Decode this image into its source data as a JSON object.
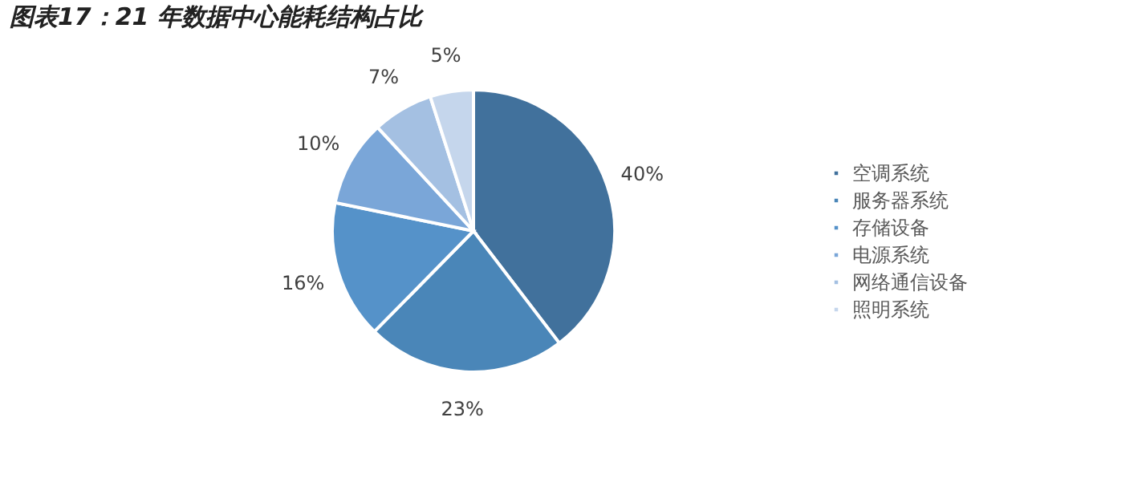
{
  "chart_data": {
    "type": "pie",
    "title": "图表17：21 年数据中心能耗结构占比",
    "categories": [
      "空调系统",
      "服务器系统",
      "存储设备",
      "电源系统",
      "网络通信设备",
      "照明系统"
    ],
    "values": [
      40,
      23,
      16,
      10,
      7,
      5
    ],
    "value_labels": [
      "40%",
      "23%",
      "16%",
      "10%",
      "7%",
      "5%"
    ],
    "colors": [
      "#41719c",
      "#4a86b8",
      "#5592c9",
      "#7aa6d8",
      "#a4c0e2",
      "#c5d6ec"
    ],
    "legend": "right"
  }
}
